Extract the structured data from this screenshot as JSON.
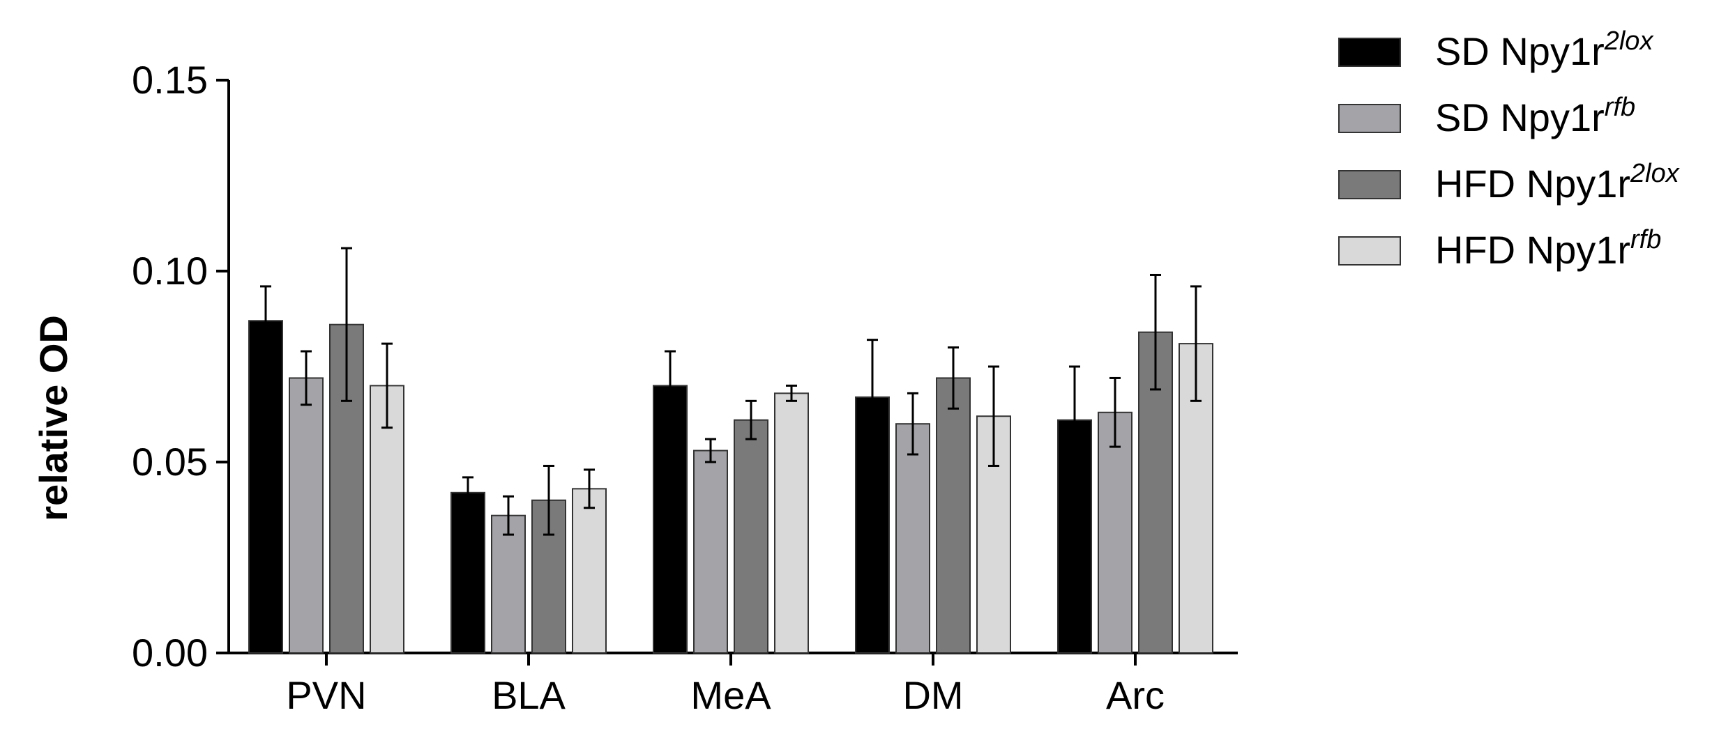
{
  "chart_data": {
    "type": "bar",
    "title": "",
    "xlabel": "",
    "ylabel": "relative OD",
    "ylim": [
      0,
      0.15
    ],
    "yticks": [
      "0.00",
      "0.05",
      "0.10",
      "0.15"
    ],
    "categories": [
      "PVN",
      "BLA",
      "MeA",
      "DM",
      "Arc"
    ],
    "series": [
      {
        "name": "SD Npy1r",
        "superscript": "2lox",
        "color": "#000000",
        "values": [
          0.087,
          0.042,
          0.07,
          0.067,
          0.061
        ],
        "errors": [
          0.009,
          0.004,
          0.009,
          0.015,
          0.014
        ]
      },
      {
        "name": "SD Npy1r",
        "superscript": "rfb",
        "color": "#a4a3a8",
        "values": [
          0.072,
          0.036,
          0.053,
          0.06,
          0.063
        ],
        "errors": [
          0.007,
          0.005,
          0.003,
          0.008,
          0.009
        ]
      },
      {
        "name": "HFD Npy1r",
        "superscript": "2lox",
        "color": "#7a7a7a",
        "values": [
          0.086,
          0.04,
          0.061,
          0.072,
          0.084
        ],
        "errors": [
          0.02,
          0.009,
          0.005,
          0.008,
          0.015
        ]
      },
      {
        "name": "HFD Npy1r",
        "superscript": "rfb",
        "color": "#d9d9d9",
        "values": [
          0.07,
          0.043,
          0.068,
          0.062,
          0.081
        ],
        "errors": [
          0.011,
          0.005,
          0.002,
          0.013,
          0.015
        ]
      }
    ],
    "legend_position": "top-right",
    "grid": false
  }
}
